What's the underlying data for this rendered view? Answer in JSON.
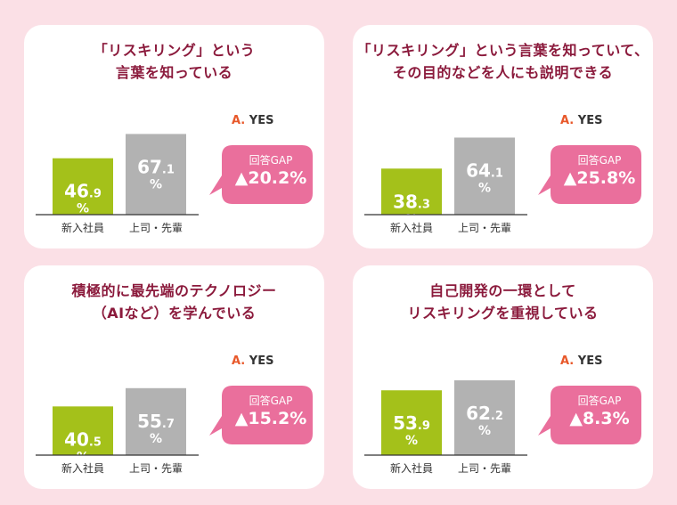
{
  "legend_label": "A.",
  "legend_value": "YES",
  "gap_label": "回答GAP",
  "colors": {
    "newcomer": "#a4c11a",
    "boss": "#b2b2b2",
    "bubble": "#ea6f9c",
    "title": "#8b1a3c",
    "accent": "#e8582a"
  },
  "chart_data": [
    {
      "type": "bar",
      "title": [
        "「リスキリング」という",
        "言葉を知っている"
      ],
      "categories": [
        "新入社員",
        "上司・先輩"
      ],
      "values": [
        46.9,
        67.1
      ],
      "unit": "%",
      "gap": "▲20.2%"
    },
    {
      "type": "bar",
      "title": [
        "「リスキリング」という言葉を知っていて、",
        "その目的などを人にも説明できる"
      ],
      "categories": [
        "新入社員",
        "上司・先輩"
      ],
      "values": [
        38.3,
        64.1
      ],
      "unit": "%",
      "gap": "▲25.8%"
    },
    {
      "type": "bar",
      "title": [
        "積極的に最先端のテクノロジー",
        "（AIなど）を学んでいる"
      ],
      "categories": [
        "新入社員",
        "上司・先輩"
      ],
      "values": [
        40.5,
        55.7
      ],
      "unit": "%",
      "gap": "▲15.2%"
    },
    {
      "type": "bar",
      "title": [
        "自己開発の一環として",
        "リスキリングを重視している"
      ],
      "categories": [
        "新入社員",
        "上司・先輩"
      ],
      "values": [
        53.9,
        62.2
      ],
      "unit": "%",
      "gap": "▲8.3%"
    }
  ]
}
